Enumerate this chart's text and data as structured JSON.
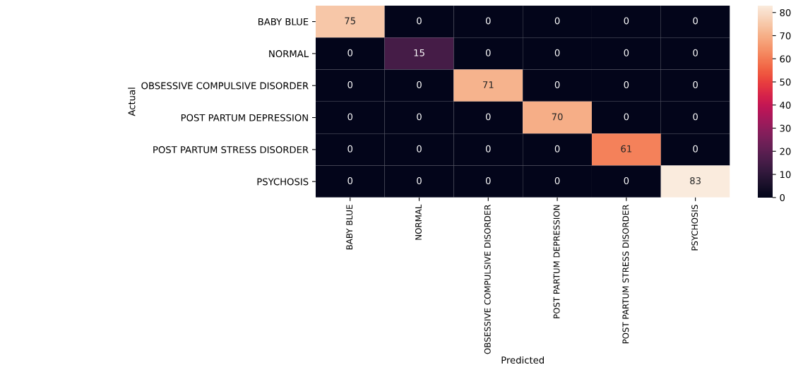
{
  "chart_data": {
    "type": "heatmap",
    "xlabel": "Predicted",
    "ylabel": "Actual",
    "categories": [
      "BABY BLUE",
      "NORMAL",
      "OBSESSIVE COMPULSIVE DISORDER",
      "POST PARTUM DEPRESSION",
      "POST PARTUM STRESS DISORDER",
      "PSYCHOSIS"
    ],
    "y_categories": [
      "BABY BLUE",
      "NORMAL",
      "OBSESSIVE COMPULSIVE DISORDER",
      "POST PARTUM DEPRESSION",
      "POST PARTUM STRESS DISORDER",
      "PSYCHOSIS"
    ],
    "cells": [
      [
        75,
        0,
        0,
        0,
        0,
        0
      ],
      [
        0,
        15,
        0,
        0,
        0,
        0
      ],
      [
        0,
        0,
        71,
        0,
        0,
        0
      ],
      [
        0,
        0,
        0,
        70,
        0,
        0
      ],
      [
        0,
        0,
        0,
        0,
        61,
        0
      ],
      [
        0,
        0,
        0,
        0,
        0,
        83
      ]
    ],
    "data_labels": true,
    "clim": [
      0,
      83
    ],
    "cticks": [
      0,
      10,
      20,
      30,
      40,
      50,
      60,
      70,
      80
    ]
  }
}
